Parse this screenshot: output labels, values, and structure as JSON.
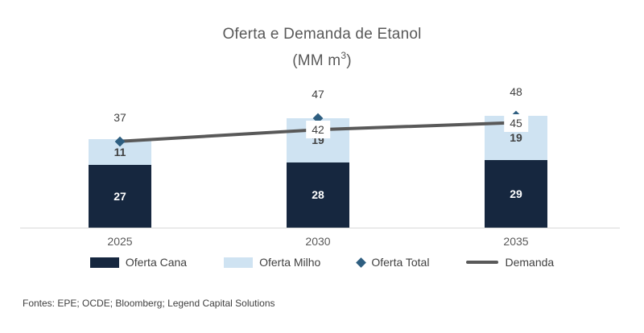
{
  "chart_data": {
    "type": "bar",
    "stacked": true,
    "title": "Oferta e Demanda de Etanol (MM m³)",
    "title_line1": "Oferta e Demanda de Etanol",
    "title_line2_prefix": "(MM m",
    "title_line2_sup": "3",
    "title_line2_suffix": ")",
    "categories": [
      "2025",
      "2030",
      "2035"
    ],
    "series": [
      {
        "name": "Oferta Cana",
        "type": "bar",
        "color": "#16273F",
        "label_color": "#FFFFFF",
        "values": [
          27,
          28,
          29
        ]
      },
      {
        "name": "Oferta Milho",
        "type": "bar",
        "color": "#CFE3F2",
        "label_color": "#404040",
        "values": [
          11,
          19,
          19
        ]
      },
      {
        "name": "Oferta Total",
        "type": "diamond",
        "color": "#2E5E80",
        "values": [
          37,
          47,
          48
        ],
        "data_labels": [
          "37",
          "47",
          "48"
        ]
      },
      {
        "name": "Demanda",
        "type": "line",
        "color": "#595959",
        "values": [
          37,
          42,
          45
        ],
        "data_labels": [
          "",
          "42",
          "45"
        ]
      }
    ],
    "ylim": [
      0,
      50
    ],
    "grid": false,
    "legend_position": "bottom",
    "axis_line_color": "#D9D9D9"
  },
  "footer": {
    "text": "Fontes: EPE; OCDE; Bloomberg; Legend Capital Solutions"
  }
}
